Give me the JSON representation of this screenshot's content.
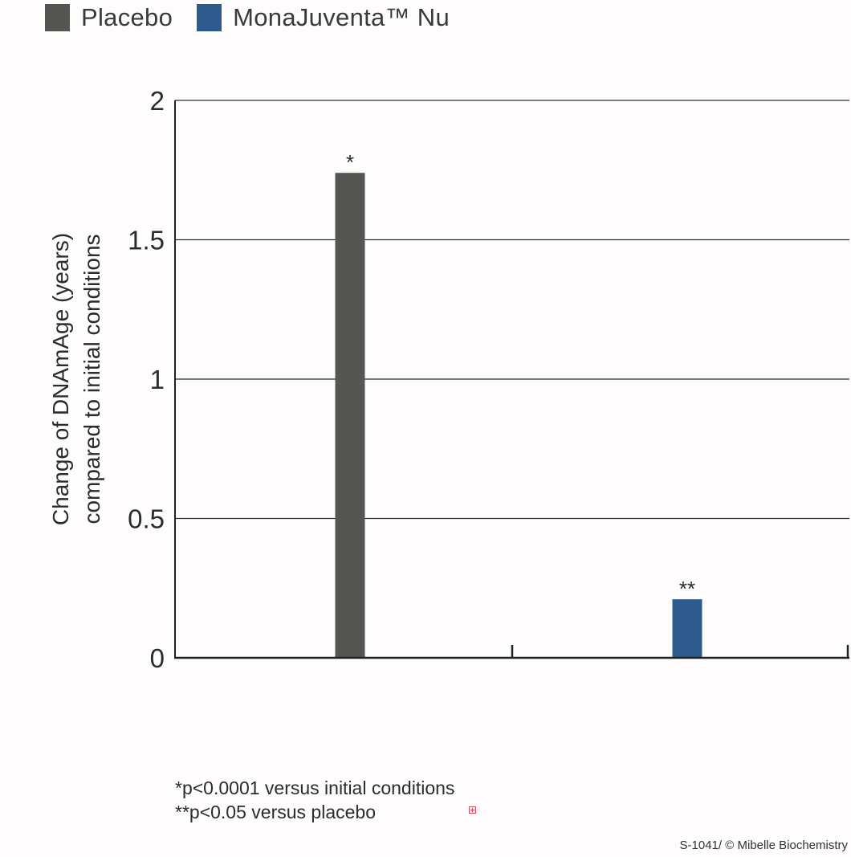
{
  "legend": {
    "items": [
      {
        "label": "Placebo",
        "color": "#555652"
      },
      {
        "label": "MonaJuventa™ Nu",
        "color": "#2e5b8f"
      }
    ]
  },
  "chart_data": {
    "type": "bar",
    "title": "",
    "xlabel": "",
    "ylabel": [
      "Change of DNAmAge (years)",
      "compared to initial conditions"
    ],
    "ylim": [
      0,
      2
    ],
    "yticks": [
      0,
      0.5,
      1,
      1.5,
      2
    ],
    "ytick_labels": [
      "0",
      "0.5",
      "1",
      "1.5",
      "2"
    ],
    "grid": true,
    "categories": [
      "Placebo",
      "MonaJuventa™ Nu"
    ],
    "values": [
      1.74,
      0.21
    ],
    "colors": [
      "#555652",
      "#2e5b8f"
    ],
    "annotations": [
      "*",
      "**"
    ]
  },
  "footnotes": [
    "*p<0.0001 versus initial conditions",
    "**p<0.05 versus placebo"
  ],
  "credit": "S-1041/ © Mibelle Biochemistry"
}
